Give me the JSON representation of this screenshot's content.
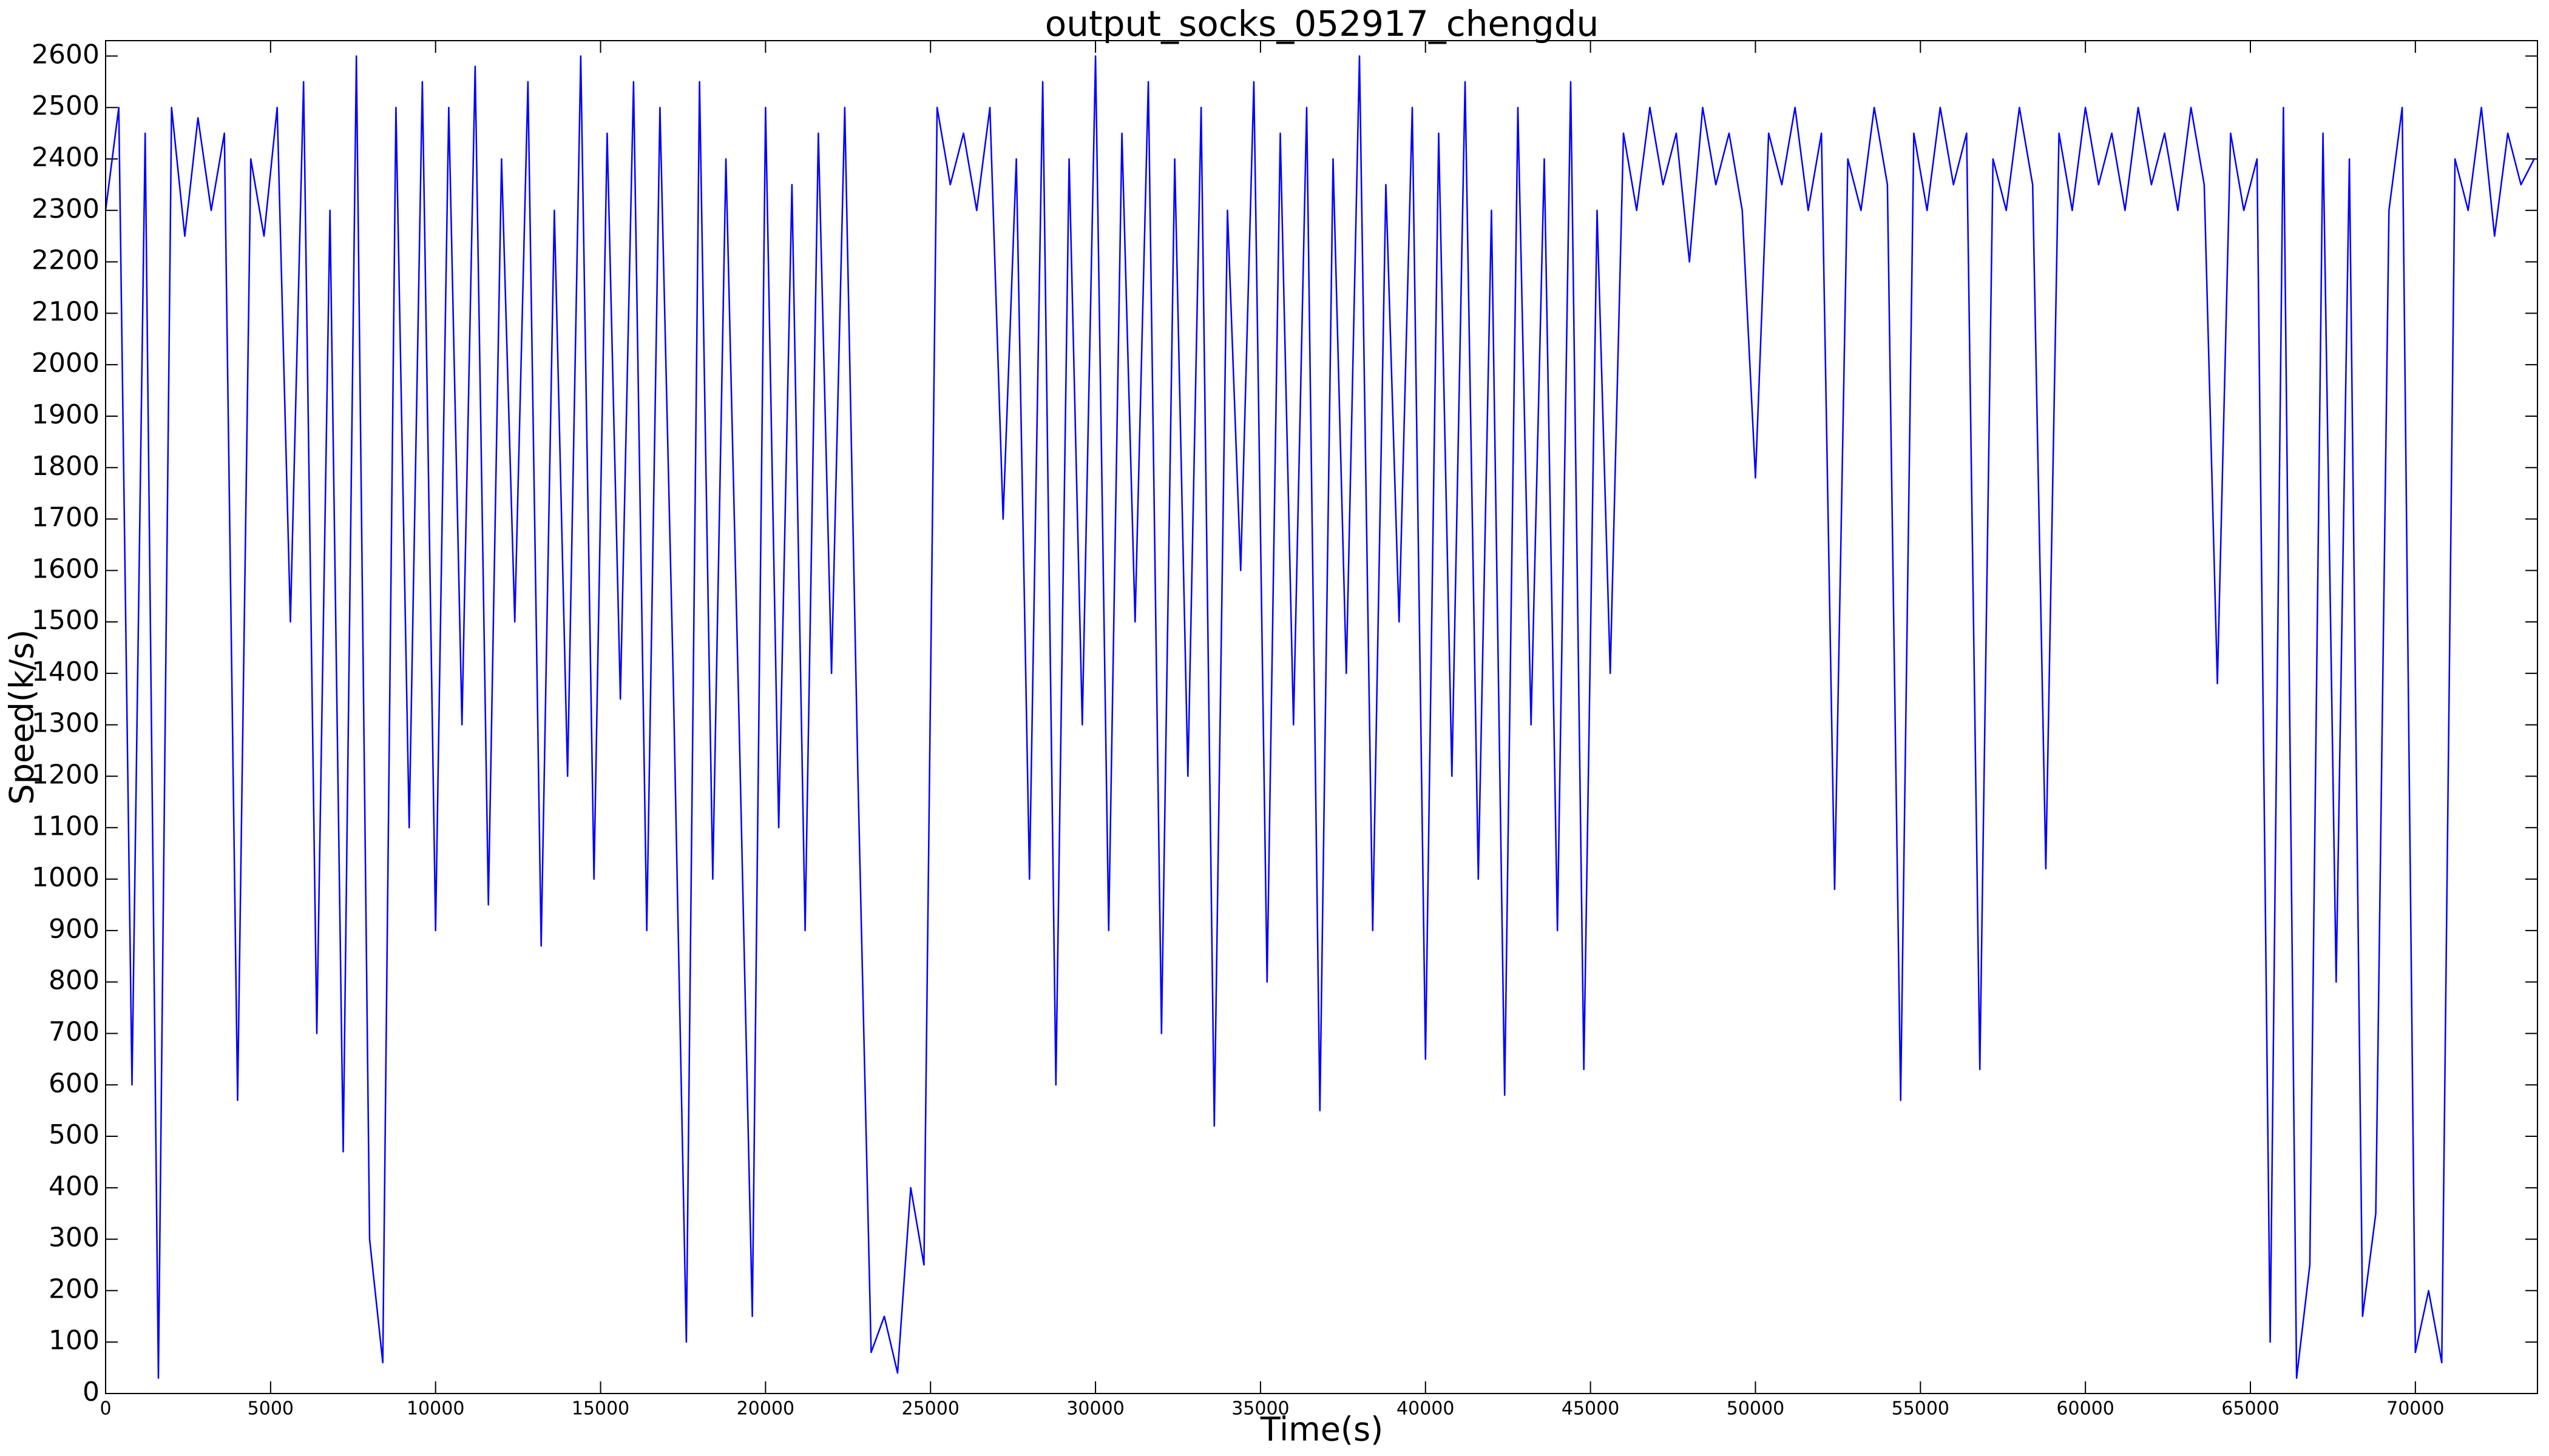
{
  "chart_data": {
    "type": "line",
    "title": "output_socks_052917_chengdu",
    "x_label": "Time(s)",
    "y_label": "Speed(k/s)",
    "x": [
      0,
      400,
      800,
      1200,
      1600,
      2000,
      2400,
      2800,
      3200,
      3600,
      4000,
      4400,
      4800,
      5200,
      5600,
      6000,
      6400,
      6800,
      7200,
      7600,
      8000,
      8400,
      8800,
      9200,
      9600,
      10000,
      10400,
      10800,
      11200,
      11600,
      12000,
      12400,
      12800,
      13200,
      13600,
      14000,
      14400,
      14800,
      15200,
      15600,
      16000,
      16400,
      16800,
      17200,
      17600,
      18000,
      18400,
      18800,
      19200,
      19600,
      20000,
      20400,
      20800,
      21200,
      21600,
      22000,
      22400,
      22800,
      23200,
      23600,
      24000,
      24400,
      24800,
      25200,
      25600,
      26000,
      26400,
      26800,
      27200,
      27600,
      28000,
      28400,
      28800,
      29200,
      29600,
      30000,
      30400,
      30800,
      31200,
      31600,
      32000,
      32400,
      32800,
      33200,
      33600,
      34000,
      34400,
      34800,
      35200,
      35600,
      36000,
      36400,
      36800,
      37200,
      37600,
      38000,
      38400,
      38800,
      39200,
      39600,
      40000,
      40400,
      40800,
      41200,
      41600,
      42000,
      42400,
      42800,
      43200,
      43600,
      44000,
      44400,
      44800,
      45200,
      45600,
      46000,
      46400,
      46800,
      47200,
      47600,
      48000,
      48400,
      48800,
      49200,
      49600,
      50000,
      50400,
      50800,
      51200,
      51600,
      52000,
      52400,
      52800,
      53200,
      53600,
      54000,
      54400,
      54800,
      55200,
      55600,
      56000,
      56400,
      56800,
      57200,
      57600,
      58000,
      58400,
      58800,
      59200,
      59600,
      60000,
      60400,
      60800,
      61200,
      61600,
      62000,
      62400,
      62800,
      63200,
      63600,
      64000,
      64400,
      64800,
      65200,
      65600,
      66000,
      66400,
      66800,
      67200,
      67600,
      68000,
      68400,
      68800,
      69200,
      69600,
      70000,
      70400,
      70800,
      71200,
      71600,
      72000,
      72400,
      72800,
      73200,
      73600
    ],
    "series": [
      {
        "color": "#0000ff",
        "values": [
          2300,
          2500,
          600,
          2450,
          30,
          2500,
          2250,
          2480,
          2300,
          2450,
          570,
          2400,
          2250,
          2500,
          1500,
          2550,
          700,
          2300,
          470,
          2600,
          300,
          60,
          2500,
          1100,
          2550,
          900,
          2500,
          1300,
          2580,
          950,
          2400,
          1500,
          2550,
          870,
          2300,
          1200,
          2600,
          1000,
          2450,
          1350,
          2550,
          900,
          2500,
          1400,
          100,
          2550,
          1000,
          2400,
          1300,
          150,
          2500,
          1100,
          2350,
          900,
          2450,
          1400,
          2500,
          1200,
          80,
          150,
          40,
          400,
          250,
          2500,
          2350,
          2450,
          2300,
          2500,
          1700,
          2400,
          1000,
          2550,
          600,
          2400,
          1300,
          2600,
          900,
          2450,
          1500,
          2550,
          700,
          2400,
          1200,
          2500,
          520,
          2300,
          1600,
          2550,
          800,
          2450,
          1300,
          2500,
          550,
          2400,
          1400,
          2600,
          900,
          2350,
          1500,
          2500,
          650,
          2450,
          1200,
          2550,
          1000,
          2300,
          580,
          2500,
          1300,
          2400,
          900,
          2550,
          630,
          2300,
          1400,
          2450,
          2300,
          2500,
          2350,
          2450,
          2200,
          2500,
          2350,
          2450,
          2300,
          1780,
          2450,
          2350,
          2500,
          2300,
          2450,
          980,
          2400,
          2300,
          2500,
          2350,
          570,
          2450,
          2300,
          2500,
          2350,
          2450,
          630,
          2400,
          2300,
          2500,
          2350,
          1020,
          2450,
          2300,
          2500,
          2350,
          2450,
          2300,
          2500,
          2350,
          2450,
          2300,
          2500,
          2350,
          1380,
          2450,
          2300,
          2400,
          100,
          2500,
          30,
          250,
          2450,
          800,
          2400,
          150,
          350,
          2300,
          2500,
          80,
          200,
          60,
          2400,
          2300,
          2500,
          2250,
          2450,
          2350,
          2400
        ]
      }
    ],
    "xlim": [
      0,
      73700
    ],
    "ylim": [
      0,
      2630
    ],
    "xticks": [
      0,
      5000,
      10000,
      15000,
      20000,
      25000,
      30000,
      35000,
      40000,
      45000,
      50000,
      55000,
      60000,
      65000,
      70000
    ],
    "yticks": [
      0,
      100,
      200,
      300,
      400,
      500,
      600,
      700,
      800,
      900,
      1000,
      1100,
      1200,
      1300,
      1400,
      1500,
      1600,
      1700,
      1800,
      1900,
      2000,
      2100,
      2200,
      2300,
      2400,
      2500,
      2600
    ]
  }
}
